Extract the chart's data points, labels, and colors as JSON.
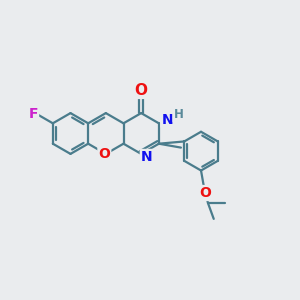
{
  "bg_color": "#eaecee",
  "bond_color": "#4a7c8c",
  "atom_colors": {
    "O": "#ee1111",
    "N": "#1111ee",
    "F": "#cc22cc",
    "H": "#5a8a9a",
    "C": "#4a7c8c"
  },
  "font_size": 9.5,
  "lw": 1.6,
  "scale": 1.0
}
